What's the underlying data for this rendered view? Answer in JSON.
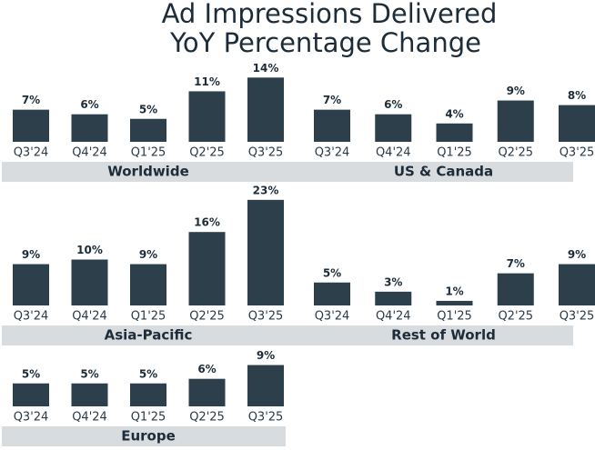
{
  "title": [
    "Ad Impressions Delivered",
    "YoY Percentage Change"
  ],
  "chart_data": [
    {
      "type": "bar",
      "title": "Worldwide",
      "categories": [
        "Q3'24",
        "Q4'24",
        "Q1'25",
        "Q2'25",
        "Q3'25"
      ],
      "values": [
        7,
        6,
        5,
        11,
        14
      ],
      "value_labels": [
        "7%",
        "6%",
        "5%",
        "11%",
        "14%"
      ],
      "color": "#2e3f4c"
    },
    {
      "type": "bar",
      "title": "US & Canada",
      "categories": [
        "Q3'24",
        "Q4'24",
        "Q1'25",
        "Q2'25",
        "Q3'25"
      ],
      "values": [
        7,
        6,
        4,
        9,
        8
      ],
      "value_labels": [
        "7%",
        "6%",
        "4%",
        "9%",
        "8%"
      ],
      "color": "#2e3f4c"
    },
    {
      "type": "bar",
      "title": "Asia-Pacific",
      "categories": [
        "Q3'24",
        "Q4'24",
        "Q1'25",
        "Q2'25",
        "Q3'25"
      ],
      "values": [
        9,
        10,
        9,
        16,
        23
      ],
      "value_labels": [
        "9%",
        "10%",
        "9%",
        "16%",
        "23%"
      ],
      "color": "#2e3f4c"
    },
    {
      "type": "bar",
      "title": "Rest of World",
      "categories": [
        "Q3'24",
        "Q4'24",
        "Q1'25",
        "Q2'25",
        "Q3'25"
      ],
      "values": [
        5,
        3,
        1,
        7,
        9
      ],
      "value_labels": [
        "5%",
        "3%",
        "1%",
        "7%",
        "9%"
      ],
      "color": "#2e3f4c"
    },
    {
      "type": "bar",
      "title": "Europe",
      "categories": [
        "Q3'24",
        "Q4'24",
        "Q1'25",
        "Q2'25",
        "Q3'25"
      ],
      "values": [
        5,
        5,
        5,
        6,
        9
      ],
      "value_labels": [
        "5%",
        "5%",
        "5%",
        "6%",
        "9%"
      ],
      "color": "#2e3f4c"
    }
  ]
}
